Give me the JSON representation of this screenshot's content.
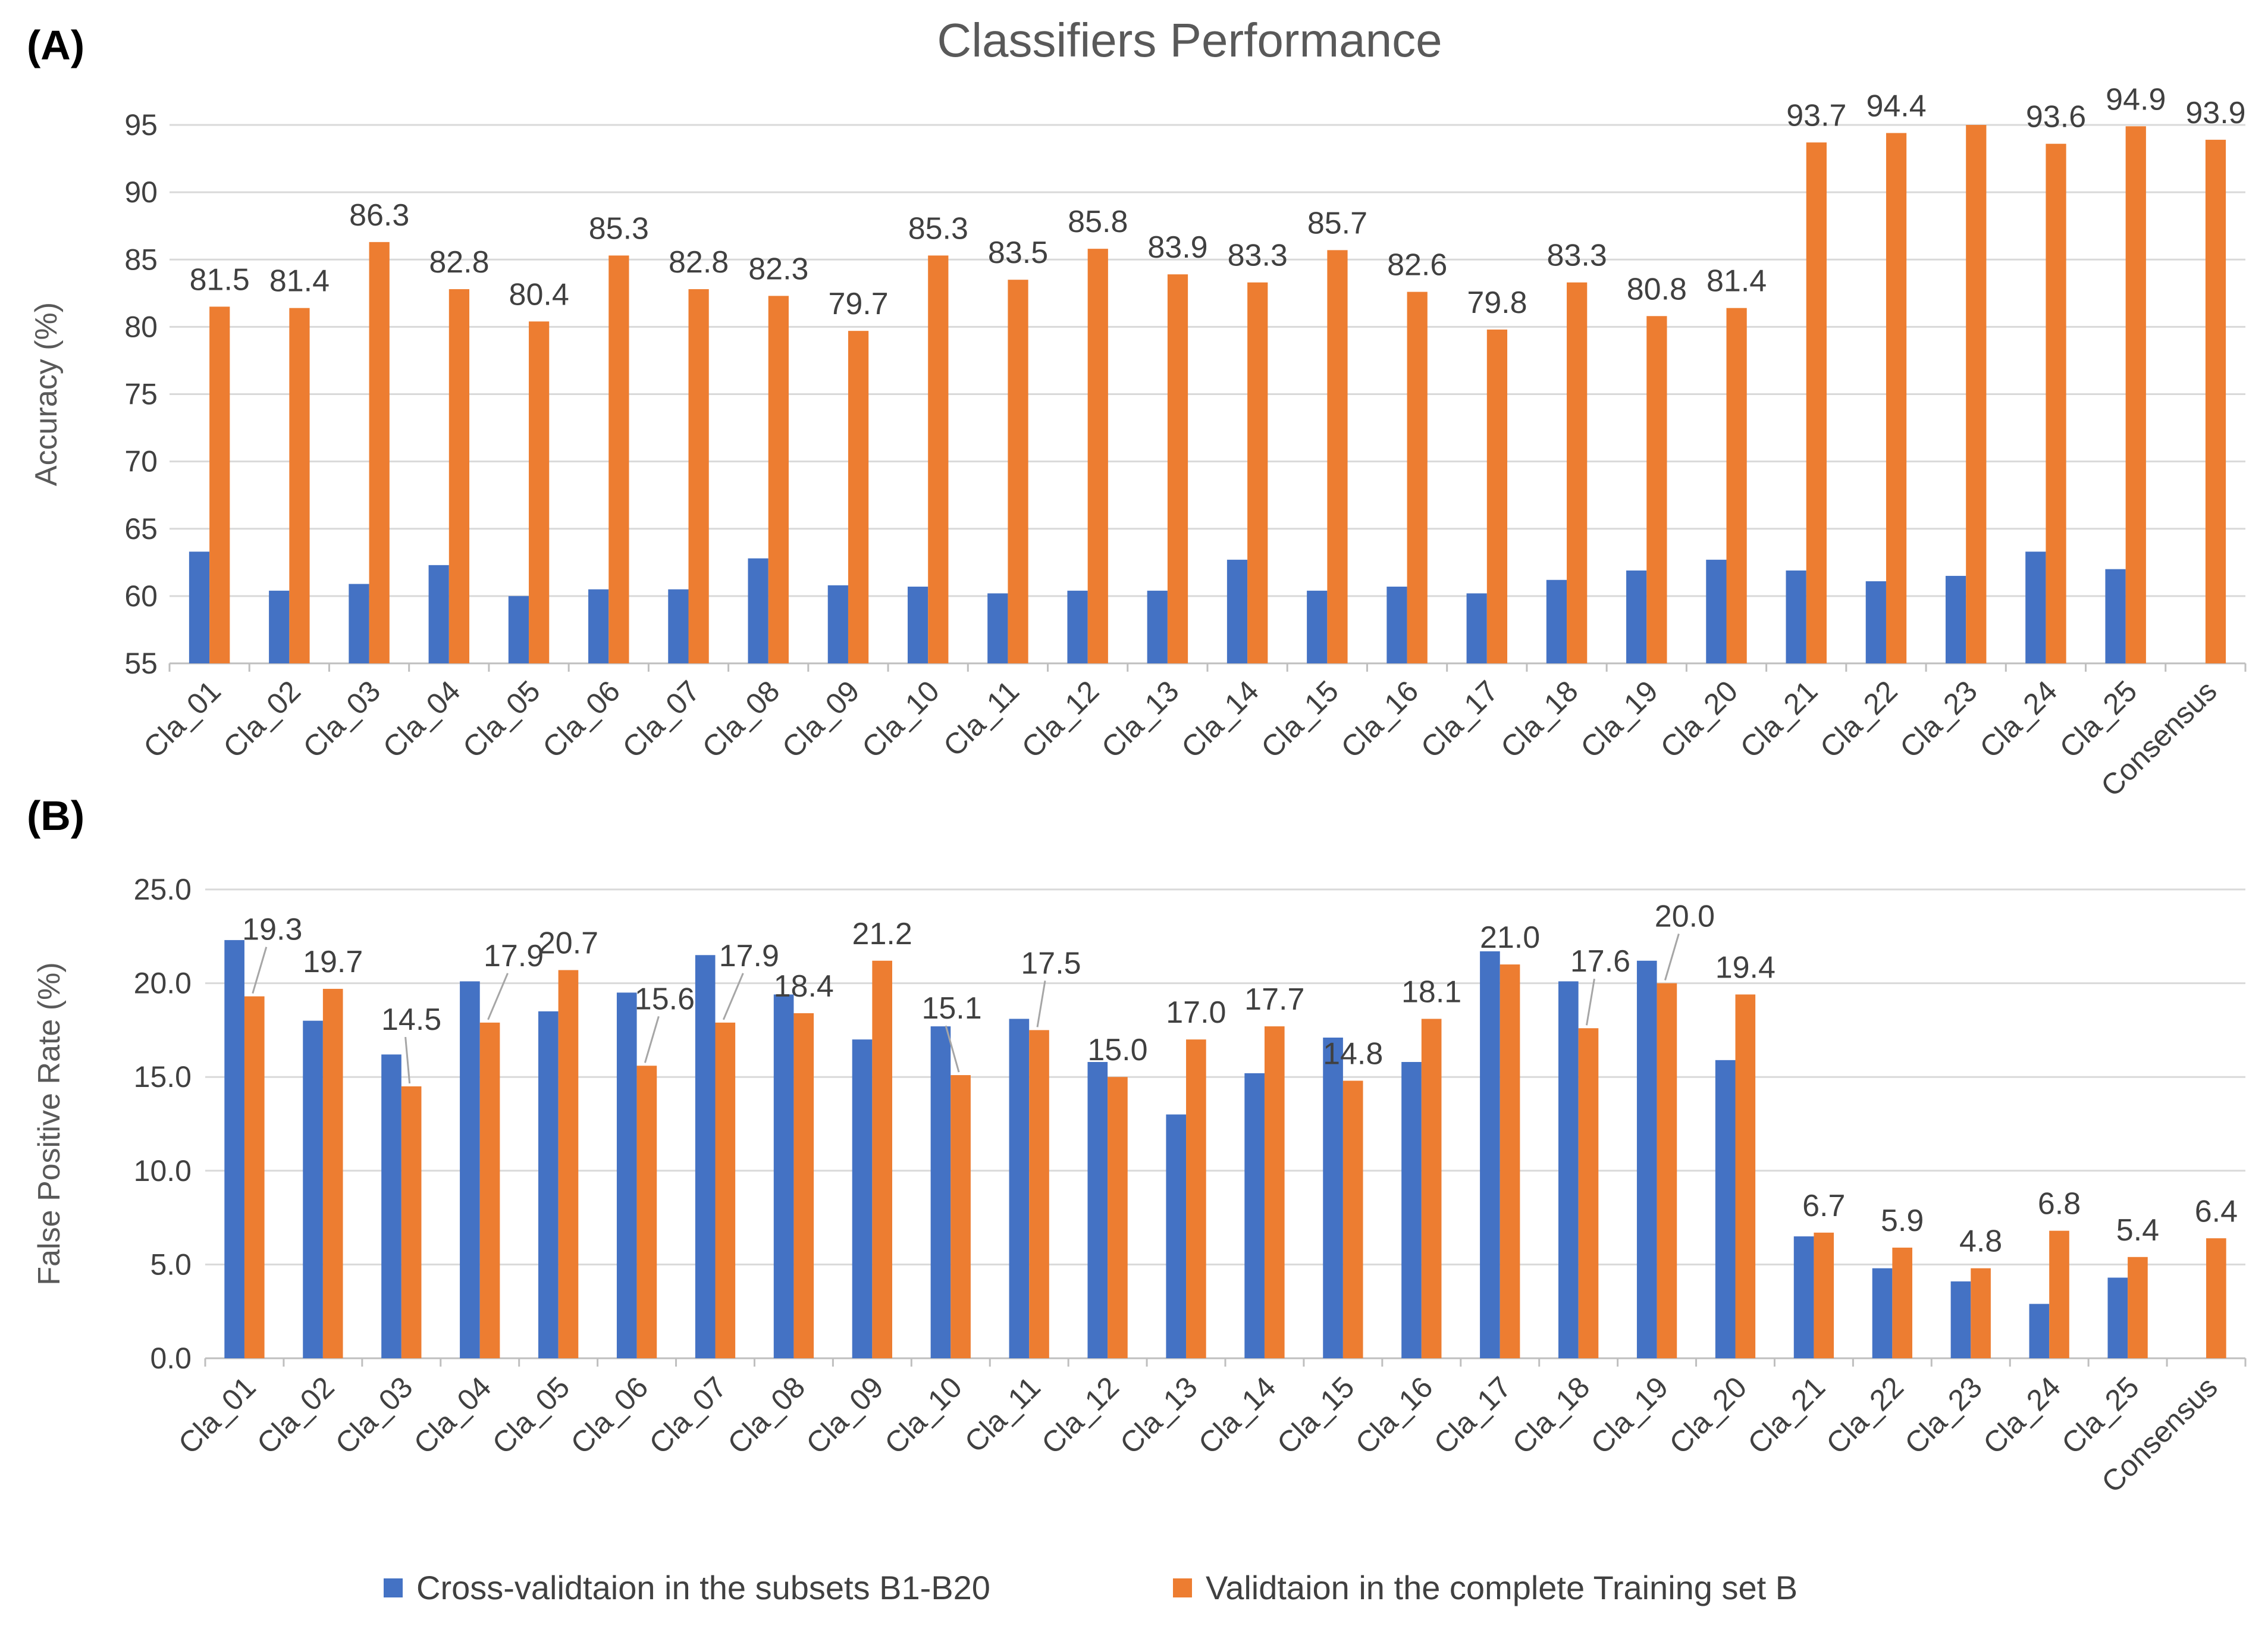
{
  "figure": {
    "title": "Classifiers Performance",
    "panel_a_label": "(A)",
    "panel_b_label": "(B)"
  },
  "legend": {
    "series1": "Cross-validtaion in the subsets B1-B20",
    "series2": "Validtaion in the complete Training set B"
  },
  "colors": {
    "series1": "#4472C4",
    "series2": "#ED7D31"
  },
  "chart_data": [
    {
      "type": "bar",
      "panel": "(A)",
      "title": "Classifiers Performance",
      "xlabel": "",
      "ylabel": "Accuracy (%)",
      "ylim": [
        55,
        95
      ],
      "yticks": [
        55,
        60,
        65,
        70,
        75,
        80,
        85,
        90,
        95
      ],
      "ytick_labels": [
        "55",
        "60",
        "65",
        "70",
        "75",
        "80",
        "85",
        "90",
        "95"
      ],
      "grid": true,
      "categories": [
        "Cla_01",
        "Cla_02",
        "Cla_03",
        "Cla_04",
        "Cla_05",
        "Cla_06",
        "Cla_07",
        "Cla_08",
        "Cla_09",
        "Cla_10",
        "Cla_11",
        "Cla_12",
        "Cla_13",
        "Cla_14",
        "Cla_15",
        "Cla_16",
        "Cla_17",
        "Cla_18",
        "Cla_19",
        "Cla_20",
        "Cla_21",
        "Cla_22",
        "Cla_23",
        "Cla_24",
        "Cla_25",
        "Consensus"
      ],
      "series": [
        {
          "name": "Cross-validtaion in the subsets B1-B20",
          "values": [
            63.3,
            60.4,
            60.9,
            62.3,
            60.0,
            60.5,
            60.5,
            62.8,
            60.8,
            60.7,
            60.2,
            60.4,
            60.4,
            62.7,
            60.4,
            60.7,
            60.2,
            61.2,
            61.9,
            62.7,
            61.9,
            61.1,
            61.5,
            63.3,
            62.0,
            null
          ],
          "labels": []
        },
        {
          "name": "Validtaion in the complete Training set B",
          "values": [
            81.5,
            81.4,
            86.3,
            82.8,
            80.4,
            85.3,
            82.8,
            82.3,
            79.7,
            85.3,
            83.5,
            85.8,
            83.9,
            83.3,
            85.7,
            82.6,
            79.8,
            83.3,
            80.8,
            81.4,
            93.7,
            94.4,
            95.0,
            93.6,
            94.9,
            93.9
          ],
          "labels": [
            "81.5",
            "81.4",
            "86.3",
            "82.8",
            "80.4",
            "85.3",
            "82.8",
            "82.3",
            "79.7",
            "85.3",
            "83.5",
            "85.8",
            "83.9",
            "83.3",
            "85.7",
            "82.6",
            "79.8",
            "83.3",
            "80.8",
            "81.4",
            "93.7",
            "94.4",
            "",
            "93.6",
            "94.9",
            "93.9"
          ]
        }
      ],
      "legend_position": "bottom"
    },
    {
      "type": "bar",
      "panel": "(B)",
      "title": "",
      "xlabel": "",
      "ylabel": "False Positive Rate  (%)",
      "ylim": [
        0,
        25
      ],
      "yticks": [
        0,
        5,
        10,
        15,
        20,
        25
      ],
      "ytick_labels": [
        "0.0",
        "5.0",
        "10.0",
        "15.0",
        "20.0",
        "25.0"
      ],
      "grid": true,
      "categories": [
        "Cla_01",
        "Cla_02",
        "Cla_03",
        "Cla_04",
        "Cla_05",
        "Cla_06",
        "Cla_07",
        "Cla_08",
        "Cla_09",
        "Cla_10",
        "Cla_11",
        "Cla_12",
        "Cla_13",
        "Cla_14",
        "Cla_15",
        "Cla_16",
        "Cla_17",
        "Cla_18",
        "Cla_19",
        "Cla_20",
        "Cla_21",
        "Cla_22",
        "Cla_23",
        "Cla_24",
        "Cla_25",
        "Consensus"
      ],
      "series": [
        {
          "name": "Cross-validtaion in the subsets B1-B20",
          "values": [
            22.3,
            18.0,
            16.2,
            20.1,
            18.5,
            19.5,
            21.5,
            19.4,
            17.0,
            17.7,
            18.1,
            15.8,
            13.0,
            15.2,
            17.1,
            15.8,
            21.7,
            20.1,
            21.2,
            15.9,
            6.5,
            4.8,
            4.1,
            2.9,
            4.3,
            null
          ],
          "labels": []
        },
        {
          "name": "Validtaion in the complete Training set B",
          "values": [
            19.3,
            19.7,
            14.5,
            17.9,
            20.7,
            15.6,
            17.9,
            18.4,
            21.2,
            15.1,
            17.5,
            15.0,
            17.0,
            17.7,
            14.8,
            18.1,
            21.0,
            17.6,
            20.0,
            19.4,
            6.7,
            5.9,
            4.8,
            6.8,
            5.4,
            6.4
          ],
          "labels": [
            "19.3",
            "19.7",
            "14.5",
            "17.9",
            "20.7",
            "15.6",
            "17.9",
            "18.4",
            "21.2",
            "15.1",
            "17.5",
            "15.0",
            "17.0",
            "17.7",
            "14.8",
            "18.1",
            "21.0",
            "17.6",
            "20.0",
            "19.4",
            "6.7",
            "5.9",
            "4.8",
            "6.8",
            "5.4",
            "6.4"
          ]
        }
      ],
      "legend_position": "bottom"
    }
  ]
}
